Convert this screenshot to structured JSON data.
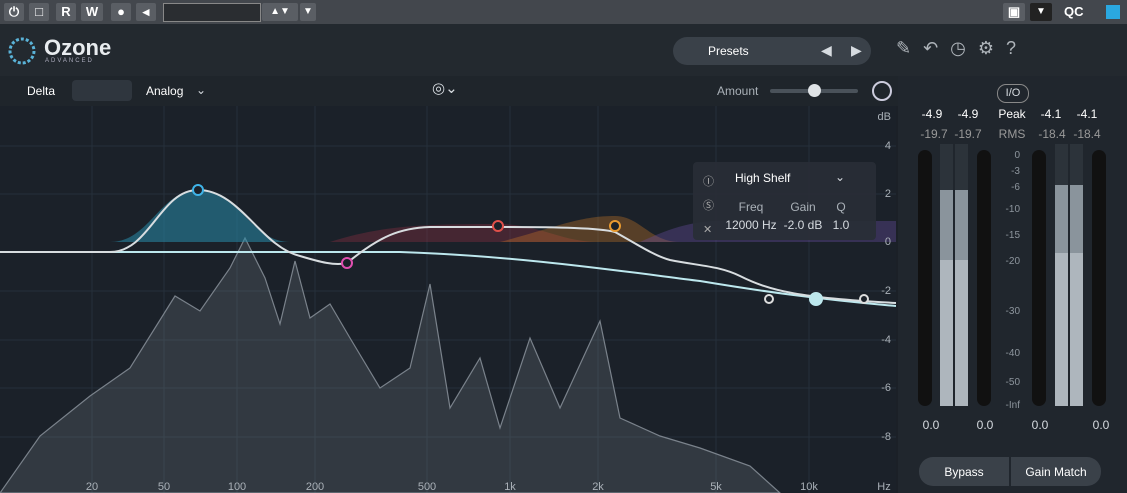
{
  "top_bar": {
    "buttons": [
      "R",
      "W"
    ],
    "qc": "QC"
  },
  "header": {
    "logo": "Ozone",
    "edition": "ADVANCED",
    "presets": "Presets"
  },
  "toolbar": {
    "delta": "Delta",
    "mode": "Analog",
    "amount": "Amount"
  },
  "graph": {
    "db_unit": "dB",
    "db_labels": [
      "4",
      "2",
      "0",
      "-2",
      "-4",
      "-6",
      "-8"
    ],
    "freq_unit": "Hz",
    "freq_labels": [
      "20",
      "50",
      "100",
      "200",
      "500",
      "1k",
      "2k",
      "5k",
      "10k"
    ]
  },
  "band_popup": {
    "shape": "High Shelf",
    "headers": [
      "Freq",
      "Gain",
      "Q"
    ],
    "values": [
      "12000 Hz",
      "-2.0 dB",
      "1.0"
    ]
  },
  "meters": {
    "io": "I/O",
    "input_peak": [
      "-4.9",
      "-4.9"
    ],
    "peak_label": "Peak",
    "output_peak": [
      "-4.1",
      "-4.1"
    ],
    "input_rms": [
      "-19.7",
      "-19.7"
    ],
    "rms_label": "RMS",
    "output_rms": [
      "-18.4",
      "-18.4"
    ],
    "scale": [
      "0",
      "-3",
      "-6",
      "-10",
      "-15",
      "-20",
      "-30",
      "-40",
      "-50",
      "-Inf"
    ],
    "gains": [
      "0.0",
      "0.0",
      "0.0",
      "0.0"
    ],
    "bypass": "Bypass",
    "gain_match": "Gain Match"
  }
}
